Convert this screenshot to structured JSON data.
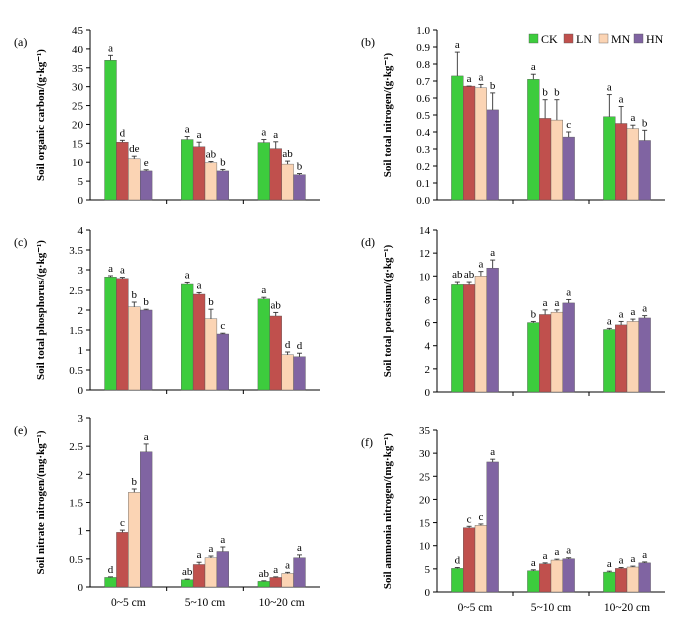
{
  "figure": {
    "categories": [
      "0~5 cm",
      "5~10 cm",
      "10~20 cm"
    ],
    "legend": [
      {
        "name": "CK",
        "color": "#3dcc3d"
      },
      {
        "name": "LN",
        "color": "#c0504d"
      },
      {
        "name": "MN",
        "color": "#fbd4b4"
      },
      {
        "name": "HN",
        "color": "#8064a2"
      }
    ]
  },
  "chart_data": [
    {
      "type": "bar",
      "label": "(a)",
      "ylabel": "Soil organic carbon/(g·kg⁻¹)",
      "ylim": [
        0,
        45
      ],
      "yticks": [
        "0",
        "5",
        "10",
        "15",
        "20",
        "25",
        "30",
        "35",
        "40",
        "45"
      ],
      "categories": [
        "0~5 cm",
        "5~10 cm",
        "10~20 cm"
      ],
      "show_xlabels": false,
      "series": [
        {
          "name": "CK",
          "values": [
            37.0,
            16.0,
            15.2
          ],
          "errors": [
            1.3,
            0.8,
            0.8
          ],
          "letters": [
            "a",
            "a",
            "a"
          ]
        },
        {
          "name": "LN",
          "values": [
            15.3,
            14.1,
            13.6
          ],
          "errors": [
            0.5,
            1.2,
            1.8
          ],
          "letters": [
            "d",
            "a",
            "a"
          ]
        },
        {
          "name": "MN",
          "values": [
            10.9,
            9.9,
            9.5
          ],
          "errors": [
            0.7,
            0.3,
            0.8
          ],
          "letters": [
            "de",
            "ab",
            "ab"
          ]
        },
        {
          "name": "HN",
          "values": [
            7.7,
            7.7,
            6.7
          ],
          "errors": [
            0.3,
            0.4,
            0.3
          ],
          "letters": [
            "e",
            "b",
            "b"
          ]
        }
      ]
    },
    {
      "type": "bar",
      "label": "(b)",
      "ylabel": "Soil total nitrogen/(g·kg⁻¹)",
      "ylim": [
        0,
        1.0
      ],
      "yticks": [
        "0.0",
        "0.1",
        "0.2",
        "0.3",
        "0.4",
        "0.5",
        "0.6",
        "0.7",
        "0.8",
        "0.9",
        "1.0"
      ],
      "categories": [
        "0~5 cm",
        "5~10 cm",
        "10~20 cm"
      ],
      "show_xlabels": false,
      "show_legend": true,
      "series": [
        {
          "name": "CK",
          "values": [
            0.73,
            0.71,
            0.49
          ],
          "errors": [
            0.14,
            0.03,
            0.13
          ],
          "letters": [
            "a",
            "a",
            "a"
          ]
        },
        {
          "name": "LN",
          "values": [
            0.67,
            0.48,
            0.45
          ],
          "errors": [
            0.0,
            0.11,
            0.1
          ],
          "letters": [
            "a",
            "b",
            "a"
          ]
        },
        {
          "name": "MN",
          "values": [
            0.66,
            0.47,
            0.42
          ],
          "errors": [
            0.02,
            0.12,
            0.02
          ],
          "letters": [
            "a",
            "b",
            "a"
          ]
        },
        {
          "name": "HN",
          "values": [
            0.53,
            0.37,
            0.35
          ],
          "errors": [
            0.1,
            0.03,
            0.06
          ],
          "letters": [
            "b",
            "c",
            "b"
          ]
        }
      ]
    },
    {
      "type": "bar",
      "label": "(c)",
      "ylabel": "Soil total phosphorus/(g·kg⁻¹)",
      "ylim": [
        0,
        4
      ],
      "yticks": [
        "0",
        "0.5",
        "1",
        "1.5",
        "2",
        "2.5",
        "3",
        "3.5",
        "4"
      ],
      "categories": [
        "0~5 cm",
        "5~10 cm",
        "10~20 cm"
      ],
      "show_xlabels": false,
      "series": [
        {
          "name": "CK",
          "values": [
            2.82,
            2.65,
            2.28
          ],
          "errors": [
            0.03,
            0.04,
            0.04
          ],
          "letters": [
            "a",
            "a",
            "a"
          ]
        },
        {
          "name": "LN",
          "values": [
            2.78,
            2.4,
            1.85
          ],
          "errors": [
            0.03,
            0.04,
            0.09
          ],
          "letters": [
            "a",
            "a",
            "ab"
          ]
        },
        {
          "name": "MN",
          "values": [
            2.08,
            1.78,
            0.88
          ],
          "errors": [
            0.12,
            0.24,
            0.07
          ],
          "letters": [
            "b",
            "b",
            "d"
          ]
        },
        {
          "name": "HN",
          "values": [
            2.0,
            1.4,
            0.83
          ],
          "errors": [
            0.02,
            0.02,
            0.09
          ],
          "letters": [
            "b",
            "c",
            "d"
          ]
        }
      ]
    },
    {
      "type": "bar",
      "label": "(d)",
      "ylabel": "Soil total potassium/(g·kg⁻¹)",
      "ylim": [
        0,
        14
      ],
      "yticks": [
        "0",
        "2",
        "4",
        "6",
        "8",
        "10",
        "12",
        "14"
      ],
      "categories": [
        "0~5 cm",
        "5~10 cm",
        "10~20 cm"
      ],
      "show_xlabels": false,
      "series": [
        {
          "name": "CK",
          "values": [
            9.3,
            6.0,
            5.4
          ],
          "errors": [
            0.2,
            0.1,
            0.1
          ],
          "letters": [
            "ab",
            "b",
            "a"
          ]
        },
        {
          "name": "LN",
          "values": [
            9.3,
            6.7,
            5.8
          ],
          "errors": [
            0.2,
            0.4,
            0.3
          ],
          "letters": [
            "ab",
            "a",
            "a"
          ]
        },
        {
          "name": "MN",
          "values": [
            10.0,
            6.9,
            6.1
          ],
          "errors": [
            0.4,
            0.2,
            0.2
          ],
          "letters": [
            "a",
            "a",
            "a"
          ]
        },
        {
          "name": "HN",
          "values": [
            10.7,
            7.7,
            6.4
          ],
          "errors": [
            0.7,
            0.3,
            0.2
          ],
          "letters": [
            "a",
            "a",
            "a"
          ]
        }
      ]
    },
    {
      "type": "bar",
      "label": "(e)",
      "ylabel": "Soil nitrate nitrogen/(mg·kg⁻¹)",
      "ylim": [
        0,
        3
      ],
      "yticks": [
        "0",
        "0.5",
        "1",
        "1.5",
        "2",
        "2.5",
        "3"
      ],
      "categories": [
        "0~5 cm",
        "5~10 cm",
        "10~20 cm"
      ],
      "show_xlabels": true,
      "series": [
        {
          "name": "CK",
          "values": [
            0.17,
            0.13,
            0.1
          ],
          "errors": [
            0.01,
            0.01,
            0.01
          ],
          "letters": [
            "d",
            "ab",
            "ab"
          ]
        },
        {
          "name": "LN",
          "values": [
            0.97,
            0.4,
            0.17
          ],
          "errors": [
            0.04,
            0.04,
            0.01
          ],
          "letters": [
            "c",
            "a",
            "a"
          ]
        },
        {
          "name": "MN",
          "values": [
            1.68,
            0.52,
            0.24
          ],
          "errors": [
            0.06,
            0.03,
            0.02
          ],
          "letters": [
            "b",
            "a",
            "a"
          ]
        },
        {
          "name": "HN",
          "values": [
            2.4,
            0.63,
            0.52
          ],
          "errors": [
            0.14,
            0.08,
            0.05
          ],
          "letters": [
            "a",
            "a",
            "a"
          ]
        }
      ]
    },
    {
      "type": "bar",
      "label": "(f)",
      "ylabel": "Soil ammonia nitrogen/(mg·kg⁻¹)",
      "ylim": [
        0,
        35
      ],
      "yticks": [
        "0",
        "5",
        "10",
        "15",
        "20",
        "25",
        "30",
        "35"
      ],
      "categories": [
        "0~5 cm",
        "5~10 cm",
        "10~20 cm"
      ],
      "show_xlabels": true,
      "series": [
        {
          "name": "CK",
          "values": [
            5.1,
            4.6,
            4.3
          ],
          "errors": [
            0.2,
            0.2,
            0.2
          ],
          "letters": [
            "d",
            "a",
            "a"
          ]
        },
        {
          "name": "LN",
          "values": [
            13.9,
            6.1,
            5.1
          ],
          "errors": [
            0.3,
            0.2,
            0.2
          ],
          "letters": [
            "c",
            "a",
            "a"
          ]
        },
        {
          "name": "MN",
          "values": [
            14.4,
            6.9,
            5.4
          ],
          "errors": [
            0.3,
            0.2,
            0.2
          ],
          "letters": [
            "c",
            "a",
            "a"
          ]
        },
        {
          "name": "HN",
          "values": [
            28.1,
            7.2,
            6.3
          ],
          "errors": [
            0.6,
            0.2,
            0.2
          ],
          "letters": [
            "a",
            "a",
            "a"
          ]
        }
      ]
    }
  ]
}
